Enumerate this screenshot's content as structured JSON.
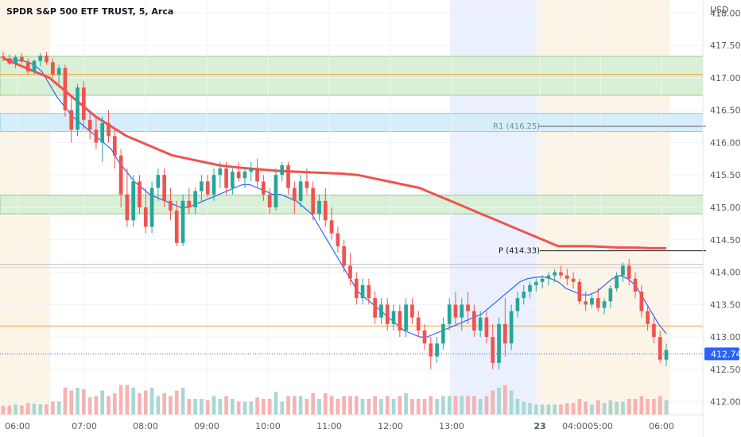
{
  "header": {
    "title": "SPDR S&P 500 ETF TRUST, 5, Arca",
    "currency": "USD"
  },
  "colors": {
    "up": "#26a69a",
    "down": "#ef5350",
    "ema_fast": "#2962ff",
    "ema_slow": "#ef5350",
    "orange_line": "#f2a531",
    "green_zone": "#d9efd6",
    "blue_zone": "#d5eefa",
    "premarket_bg": "#fdf4e8",
    "session_blue_bg": "#eaf0fd"
  },
  "chart_data": {
    "type": "candlestick",
    "ylim": [
      411.8,
      418.2
    ],
    "y_ticks": [
      "412.00",
      "412.50",
      "413.00",
      "413.50",
      "414.00",
      "414.50",
      "415.00",
      "415.50",
      "416.00",
      "416.50",
      "417.00",
      "417.50",
      "418.00"
    ],
    "x_ticks": [
      "06:00",
      "07:00",
      "08:00",
      "09:00",
      "10:00",
      "11:00",
      "12:00",
      "13:00",
      "23",
      "04:00",
      "05:00",
      "06:00"
    ],
    "last_price": "412.74",
    "levels": [
      {
        "label": "R1 (416.25)",
        "value": 416.25
      },
      {
        "label": "P (414.33)",
        "value": 414.33
      }
    ],
    "horizontal_lines": [
      417.05,
      413.17,
      414.12,
      414.07
    ],
    "zones": [
      {
        "low": 416.73,
        "high": 417.33,
        "kind": "green"
      },
      {
        "low": 416.17,
        "high": 416.45,
        "kind": "blue"
      },
      {
        "low": 414.9,
        "high": 415.19,
        "kind": "green"
      }
    ],
    "candles": [
      [
        417.33,
        417.4,
        417.25,
        417.3
      ],
      [
        417.3,
        417.36,
        417.2,
        417.22
      ],
      [
        417.22,
        417.35,
        417.15,
        417.32
      ],
      [
        417.32,
        417.38,
        417.22,
        417.25
      ],
      [
        417.25,
        417.3,
        417.05,
        417.1
      ],
      [
        417.1,
        417.28,
        417.05,
        417.26
      ],
      [
        417.26,
        417.38,
        417.18,
        417.34
      ],
      [
        417.34,
        417.4,
        417.2,
        417.24
      ],
      [
        417.24,
        417.3,
        417.0,
        417.05
      ],
      [
        417.05,
        417.2,
        416.9,
        417.15
      ],
      [
        417.15,
        417.2,
        416.4,
        416.5
      ],
      [
        416.5,
        416.7,
        416.0,
        416.2
      ],
      [
        416.2,
        416.9,
        416.1,
        416.85
      ],
      [
        416.85,
        416.95,
        416.2,
        416.35
      ],
      [
        416.35,
        416.5,
        416.05,
        416.2
      ],
      [
        416.2,
        416.4,
        415.9,
        416.0
      ],
      [
        416.0,
        416.4,
        415.7,
        416.3
      ],
      [
        416.3,
        416.5,
        416.0,
        416.1
      ],
      [
        416.1,
        416.2,
        415.6,
        415.8
      ],
      [
        415.8,
        415.9,
        415.0,
        415.2
      ],
      [
        415.2,
        415.6,
        414.7,
        414.8
      ],
      [
        414.8,
        415.5,
        414.7,
        415.4
      ],
      [
        415.4,
        415.5,
        414.9,
        415.0
      ],
      [
        415.0,
        415.3,
        414.6,
        414.7
      ],
      [
        414.7,
        415.4,
        414.6,
        415.3
      ],
      [
        415.3,
        415.6,
        415.1,
        415.5
      ],
      [
        415.5,
        415.6,
        415.0,
        415.1
      ],
      [
        415.1,
        415.3,
        414.8,
        414.95
      ],
      [
        414.95,
        415.1,
        414.4,
        414.45
      ],
      [
        414.45,
        415.2,
        414.4,
        415.1
      ],
      [
        415.1,
        415.3,
        414.9,
        415.0
      ],
      [
        415.0,
        415.3,
        414.9,
        415.25
      ],
      [
        415.25,
        415.5,
        415.1,
        415.4
      ],
      [
        415.4,
        415.5,
        415.15,
        415.2
      ],
      [
        415.2,
        415.6,
        415.1,
        415.5
      ],
      [
        415.5,
        415.7,
        415.3,
        415.6
      ],
      [
        415.6,
        415.7,
        415.2,
        415.3
      ],
      [
        415.3,
        415.6,
        415.2,
        415.55
      ],
      [
        415.55,
        415.7,
        415.4,
        415.45
      ],
      [
        415.45,
        415.6,
        415.3,
        415.55
      ],
      [
        415.55,
        415.7,
        415.4,
        415.6
      ],
      [
        415.6,
        415.75,
        415.3,
        415.4
      ],
      [
        415.4,
        415.5,
        415.1,
        415.2
      ],
      [
        415.2,
        415.3,
        414.9,
        415.0
      ],
      [
        415.0,
        415.6,
        414.95,
        415.5
      ],
      [
        415.5,
        415.7,
        415.4,
        415.65
      ],
      [
        415.65,
        415.7,
        415.2,
        415.3
      ],
      [
        415.3,
        415.4,
        414.9,
        415.1
      ],
      [
        415.1,
        415.5,
        415.0,
        415.4
      ],
      [
        415.4,
        415.6,
        415.2,
        415.3
      ],
      [
        415.3,
        415.4,
        414.8,
        414.9
      ],
      [
        414.9,
        415.2,
        414.8,
        415.1
      ],
      [
        415.1,
        415.3,
        414.7,
        414.8
      ],
      [
        414.8,
        415.0,
        414.5,
        414.6
      ],
      [
        414.6,
        414.7,
        414.3,
        414.4
      ],
      [
        414.4,
        414.5,
        414.0,
        414.1
      ],
      [
        414.1,
        414.3,
        413.8,
        413.9
      ],
      [
        413.9,
        414.0,
        413.5,
        413.6
      ],
      [
        413.6,
        413.9,
        413.5,
        413.8
      ],
      [
        413.8,
        413.9,
        413.5,
        413.6
      ],
      [
        413.6,
        413.7,
        413.2,
        413.3
      ],
      [
        413.3,
        413.6,
        413.2,
        413.5
      ],
      [
        413.5,
        413.6,
        413.1,
        413.2
      ],
      [
        413.2,
        413.5,
        413.1,
        413.4
      ],
      [
        413.4,
        413.5,
        413.0,
        413.1
      ],
      [
        413.1,
        413.6,
        413.0,
        413.5
      ],
      [
        413.5,
        413.6,
        413.2,
        413.3
      ],
      [
        413.3,
        413.4,
        413.0,
        413.1
      ],
      [
        413.1,
        413.2,
        412.8,
        412.9
      ],
      [
        412.9,
        413.0,
        412.5,
        412.7
      ],
      [
        412.7,
        413.0,
        412.6,
        412.9
      ],
      [
        412.9,
        413.3,
        412.8,
        413.2
      ],
      [
        413.2,
        413.6,
        413.1,
        413.5
      ],
      [
        413.5,
        413.7,
        413.2,
        413.3
      ],
      [
        413.3,
        413.6,
        413.1,
        413.5
      ],
      [
        413.5,
        413.7,
        413.2,
        413.4
      ],
      [
        413.4,
        413.5,
        413.0,
        413.1
      ],
      [
        413.1,
        413.4,
        413.0,
        413.3
      ],
      [
        413.3,
        413.4,
        412.9,
        413.0
      ],
      [
        413.0,
        413.2,
        412.5,
        412.6
      ],
      [
        412.6,
        413.3,
        412.5,
        413.2
      ],
      [
        413.2,
        413.6,
        412.7,
        412.9
      ],
      [
        412.9,
        413.5,
        412.8,
        413.4
      ],
      [
        413.4,
        413.7,
        413.3,
        413.6
      ],
      [
        413.6,
        413.8,
        413.5,
        413.7
      ],
      [
        413.7,
        413.85,
        413.6,
        413.8
      ],
      [
        413.8,
        413.9,
        413.7,
        413.85
      ],
      [
        413.85,
        413.95,
        413.75,
        413.9
      ],
      [
        413.9,
        414.0,
        413.8,
        413.95
      ],
      [
        413.95,
        414.05,
        413.85,
        414.0
      ],
      [
        414.0,
        414.1,
        413.9,
        413.95
      ],
      [
        413.95,
        414.05,
        413.8,
        413.9
      ],
      [
        413.9,
        414.0,
        413.75,
        413.85
      ],
      [
        413.85,
        413.9,
        413.5,
        413.55
      ],
      [
        413.55,
        413.7,
        413.4,
        413.5
      ],
      [
        413.5,
        413.65,
        413.45,
        413.6
      ],
      [
        413.6,
        413.75,
        413.4,
        413.45
      ],
      [
        413.45,
        413.6,
        413.35,
        413.55
      ],
      [
        413.55,
        413.8,
        413.45,
        413.75
      ],
      [
        413.75,
        414.0,
        413.7,
        413.95
      ],
      [
        413.95,
        414.15,
        413.85,
        414.1
      ],
      [
        414.1,
        414.2,
        413.8,
        413.9
      ],
      [
        413.9,
        414.0,
        413.6,
        413.7
      ],
      [
        413.7,
        413.8,
        413.3,
        413.4
      ],
      [
        413.4,
        413.5,
        413.1,
        413.2
      ],
      [
        413.2,
        413.3,
        412.9,
        413.0
      ],
      [
        413.0,
        413.1,
        412.6,
        412.65
      ],
      [
        412.65,
        412.9,
        412.55,
        412.8
      ]
    ],
    "ema_fast": [
      417.3,
      417.28,
      417.27,
      417.25,
      417.2,
      417.1,
      416.9,
      416.7,
      416.55,
      416.4,
      416.3,
      416.2,
      416.1,
      416.0,
      415.9,
      415.7,
      415.55,
      415.4,
      415.3,
      415.2,
      415.15,
      415.1,
      415.05,
      415.0,
      415.0,
      415.05,
      415.1,
      415.15,
      415.2,
      415.25,
      415.3,
      415.35,
      415.35,
      415.3,
      415.25,
      415.2,
      415.2,
      415.15,
      415.1,
      415.0,
      414.9,
      414.7,
      414.5,
      414.3,
      414.1,
      413.9,
      413.7,
      413.6,
      413.5,
      413.4,
      413.3,
      413.2,
      413.1,
      413.05,
      413.0,
      413.0,
      413.05,
      413.1,
      413.15,
      413.2,
      413.25,
      413.3,
      413.35,
      413.45,
      413.55,
      413.65,
      413.75,
      413.85,
      413.9,
      413.92,
      413.93,
      413.9,
      413.85,
      413.75,
      413.7,
      413.65,
      413.65,
      413.7,
      413.8,
      413.9,
      413.95,
      413.9,
      413.8,
      413.6,
      413.4,
      413.2,
      413.05
    ],
    "ema_slow": [
      417.3,
      417.2,
      417.1,
      417.0,
      416.8,
      416.6,
      416.4,
      416.25,
      416.1,
      416.0,
      415.9,
      415.8,
      415.75,
      415.7,
      415.65,
      415.62,
      415.6,
      415.58,
      415.56,
      415.55,
      415.54,
      415.53,
      415.52,
      415.5,
      415.45,
      415.4,
      415.35,
      415.3,
      415.2,
      415.1,
      415.0,
      414.9,
      414.8,
      414.7,
      414.6,
      414.5,
      414.4,
      414.4,
      414.4,
      414.39,
      414.38,
      414.38,
      414.37,
      414.37
    ]
  }
}
